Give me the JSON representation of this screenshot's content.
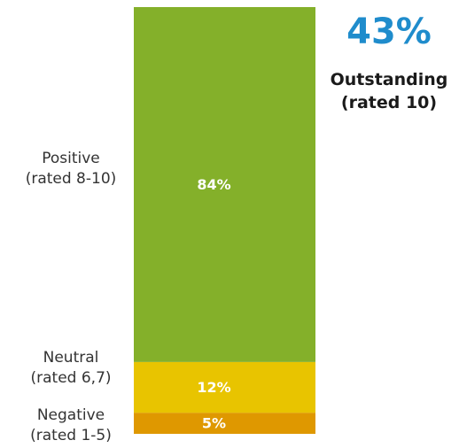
{
  "chart_data": {
    "type": "bar",
    "stacked": true,
    "categories": [
      "Positive\n(rated 8-10)",
      "Neutral\n(rated 6,7)",
      "Negative\n(rated 1-5)"
    ],
    "series": [
      {
        "values": [
          84,
          12,
          5
        ],
        "colors": [
          "#84b02a",
          "#e8c400",
          "#df9800"
        ]
      }
    ],
    "data_labels": [
      "84%",
      "12%",
      "5%"
    ],
    "ylim": [
      0,
      100
    ],
    "grid": false
  },
  "category_labels": {
    "positive": {
      "line1": "Positive",
      "line2": "(rated 8-10)"
    },
    "neutral": {
      "line1": "Neutral",
      "line2": "(rated 6,7)"
    },
    "negative": {
      "line1": "Negative",
      "line2": "(rated 1-5)"
    }
  },
  "headline": {
    "value": "43%",
    "label_line1": "Outstanding",
    "label_line2": "(rated 10)",
    "color": "#1f8ccc"
  }
}
